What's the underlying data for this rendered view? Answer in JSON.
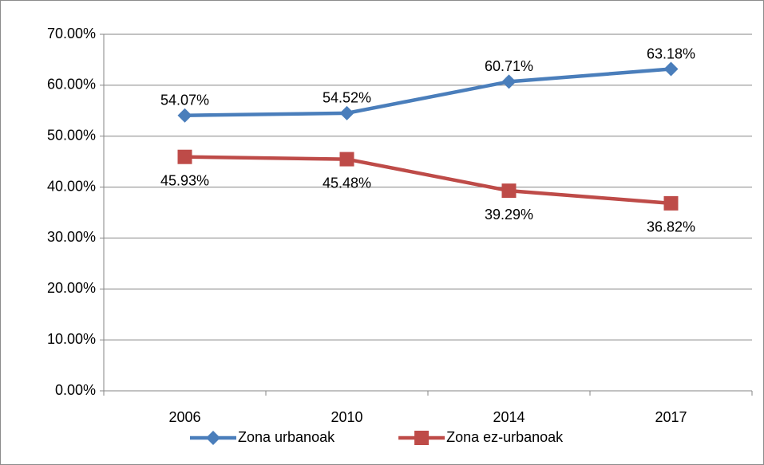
{
  "chart_data": {
    "type": "line",
    "categories": [
      "2006",
      "2010",
      "2014",
      "2017"
    ],
    "series": [
      {
        "name": "Zona urbanoak",
        "color": "#4a7ebb",
        "marker": "diamond",
        "label_position": "above",
        "values": [
          54.07,
          54.52,
          60.71,
          63.18
        ],
        "value_labels": [
          "54.07%",
          "54.52%",
          "60.71%",
          "63.18%"
        ]
      },
      {
        "name": "Zona ez-urbanoak",
        "color": "#be4b48",
        "marker": "square",
        "label_position": "below",
        "values": [
          45.93,
          45.48,
          39.29,
          36.82
        ],
        "value_labels": [
          "45.93%",
          "45.48%",
          "39.29%",
          "36.82%"
        ]
      }
    ],
    "ylim": [
      0,
      70
    ],
    "yticks": [
      {
        "value": 0,
        "label": "0.00%"
      },
      {
        "value": 10,
        "label": "10.00%"
      },
      {
        "value": 20,
        "label": "20.00%"
      },
      {
        "value": 30,
        "label": "30.00%"
      },
      {
        "value": 40,
        "label": "40.00%"
      },
      {
        "value": 50,
        "label": "50.00%"
      },
      {
        "value": 60,
        "label": "60.00%"
      },
      {
        "value": 70,
        "label": "70.00%"
      }
    ],
    "grid": true,
    "legend": "bottom"
  }
}
